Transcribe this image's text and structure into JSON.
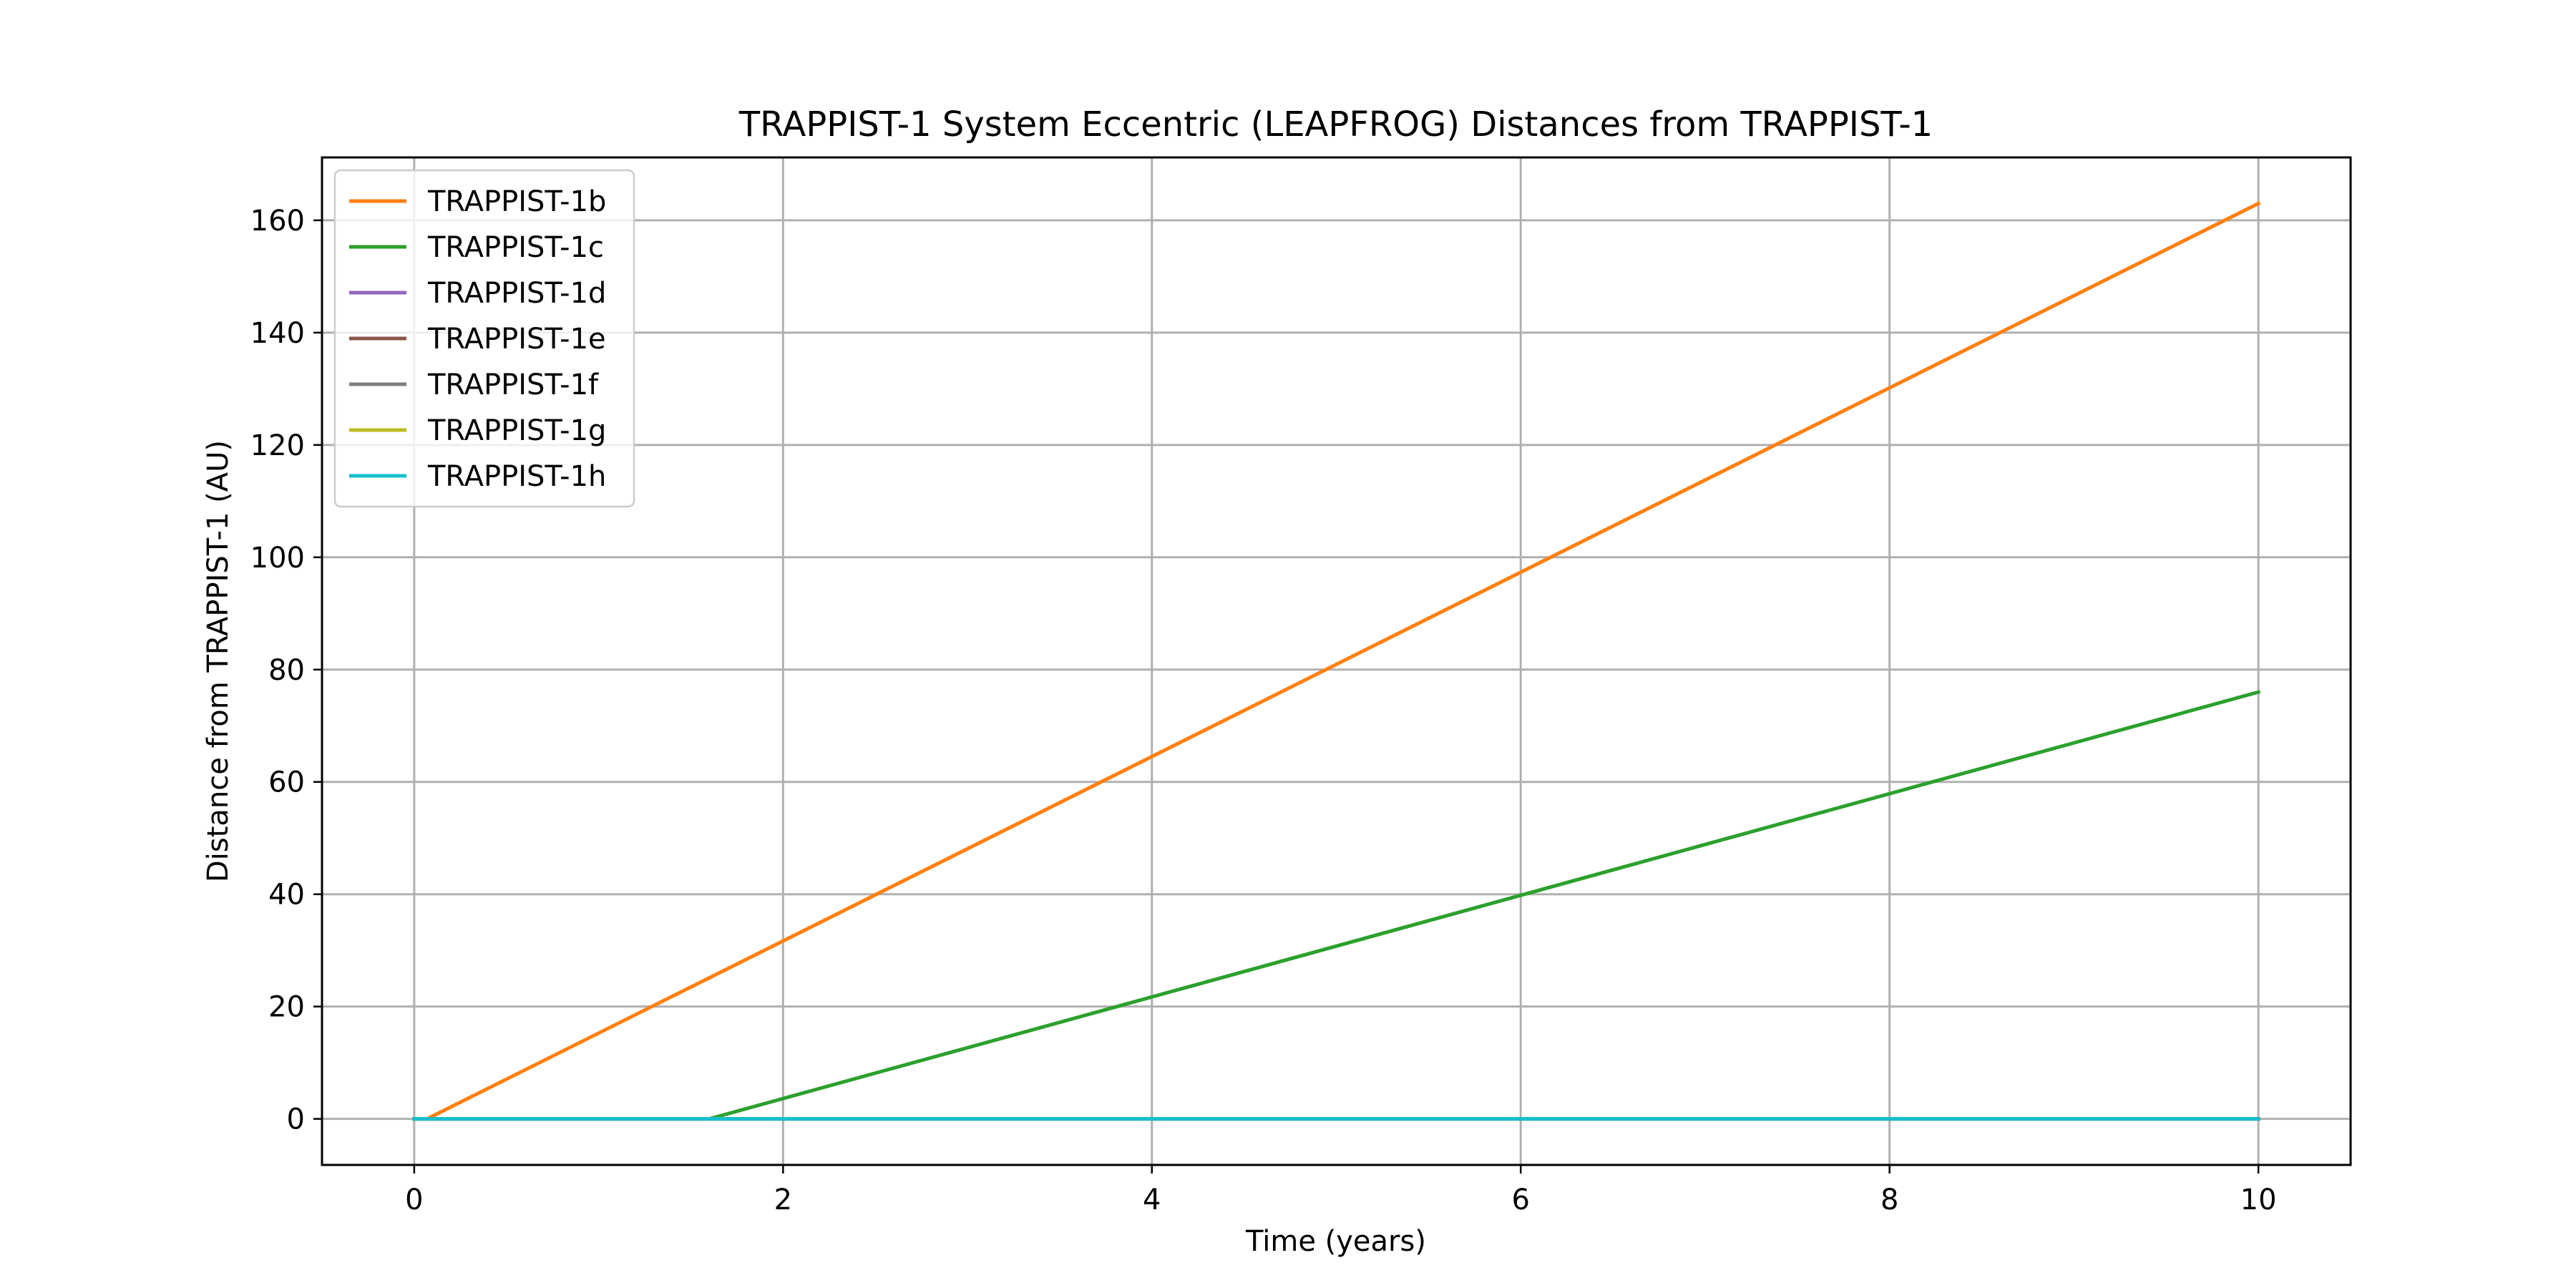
{
  "chart_data": {
    "type": "line",
    "title": "TRAPPIST-1 System Eccentric (LEAPFROG) Distances from TRAPPIST-1",
    "xlabel": "Time (years)",
    "ylabel": "Distance from TRAPPIST-1 (AU)",
    "xlim": [
      -0.5,
      10.5
    ],
    "ylim": [
      -8.2,
      171.2
    ],
    "xticks": [
      0,
      2,
      4,
      6,
      8,
      10
    ],
    "yticks": [
      0,
      20,
      40,
      60,
      80,
      100,
      120,
      140,
      160
    ],
    "grid": true,
    "legend_position": "top-left",
    "series": [
      {
        "name": "TRAPPIST-1b",
        "color": "#ff7f0e",
        "x": [
          0,
          0.07,
          10
        ],
        "y": [
          0,
          0,
          163
        ]
      },
      {
        "name": "TRAPPIST-1c",
        "color": "#2ca02c",
        "x": [
          0,
          1.6,
          10
        ],
        "y": [
          0,
          0,
          76
        ]
      },
      {
        "name": "TRAPPIST-1d",
        "color": "#9467bd",
        "x": [
          0,
          10
        ],
        "y": [
          0,
          0
        ]
      },
      {
        "name": "TRAPPIST-1e",
        "color": "#8c564b",
        "x": [
          0,
          10
        ],
        "y": [
          0,
          0
        ]
      },
      {
        "name": "TRAPPIST-1f",
        "color": "#7f7f7f",
        "x": [
          0,
          10
        ],
        "y": [
          0,
          0
        ]
      },
      {
        "name": "TRAPPIST-1g",
        "color": "#bcbd22",
        "x": [
          0,
          10
        ],
        "y": [
          0,
          0
        ]
      },
      {
        "name": "TRAPPIST-1h",
        "color": "#17becf",
        "x": [
          0,
          10
        ],
        "y": [
          0,
          0
        ]
      }
    ]
  }
}
